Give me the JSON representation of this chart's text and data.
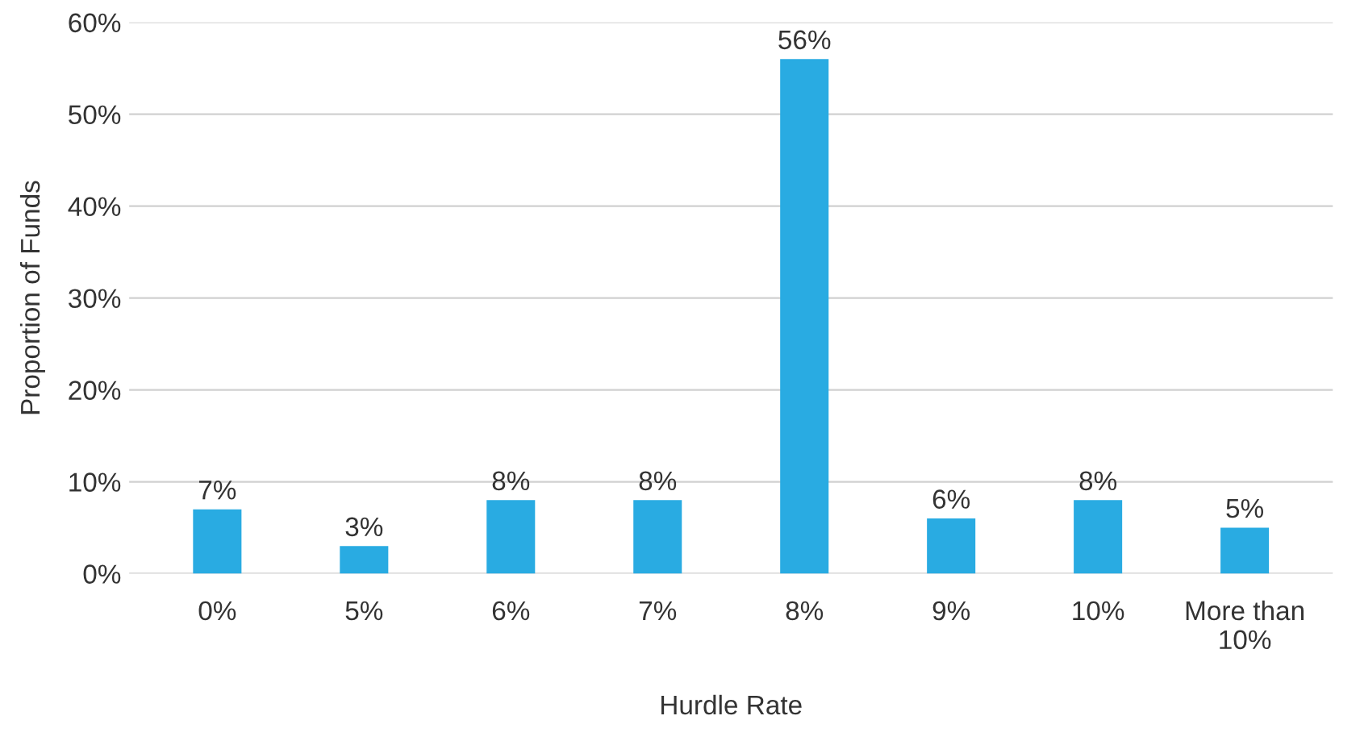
{
  "chart_data": {
    "type": "bar",
    "xlabel": "Hurdle Rate",
    "ylabel": "Proportion of Funds",
    "categories": [
      "0%",
      "5%",
      "6%",
      "7%",
      "8%",
      "9%",
      "10%",
      "More than\n10%"
    ],
    "values": [
      7,
      3,
      8,
      8,
      56,
      6,
      8,
      5
    ],
    "value_labels": [
      "7%",
      "3%",
      "8%",
      "8%",
      "56%",
      "6%",
      "8%",
      "5%"
    ],
    "color": "#29abe2",
    "ylim": [
      0,
      60
    ],
    "yticks": [
      {
        "value": 0,
        "label": "0%"
      },
      {
        "value": 10,
        "label": "10%"
      },
      {
        "value": 20,
        "label": "20%"
      },
      {
        "value": 30,
        "label": "30%"
      },
      {
        "value": 40,
        "label": "40%"
      },
      {
        "value": 50,
        "label": "50%"
      },
      {
        "value": 60,
        "label": "60%"
      }
    ],
    "grid": "y",
    "legend": false
  }
}
